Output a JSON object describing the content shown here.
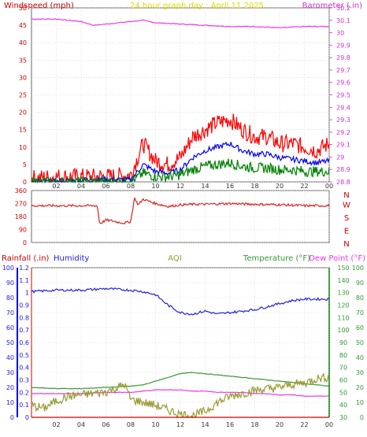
{
  "header": {
    "left_label": "Windspeed (mph)",
    "center_label": "24 hour graph day : April 11 2025",
    "right_label": "Barometer (.in)"
  },
  "bottom_header": {
    "rainfall_label": "Rainfall (.in)",
    "humidity_label": "Humidity",
    "aqi_label": "AQI",
    "temperature_label": "Temperature (°F)",
    "dewpoint_label": "Dew Point (°F)"
  },
  "colors": {
    "windspeed": "#cc0000",
    "gust": "#ff0000",
    "wind_avg": "#0000ee",
    "wind_low": "#008000",
    "barometer": "#ee33ee",
    "direction": "#dd2222",
    "humidity": "#2020dd",
    "temperature": "#339933",
    "dewpoint": "#ee33ee",
    "aqi": "#999933",
    "rain": "#cc0000",
    "title": "#dddd00",
    "grid": "#cfcfcf"
  },
  "chart_data": [
    {
      "type": "line",
      "name": "wind-baro",
      "x_ticks": [
        "02",
        "04",
        "06",
        "08",
        "10",
        "12",
        "14",
        "16",
        "18",
        "20",
        "22",
        "00"
      ],
      "left_axis": {
        "ylim": [
          0,
          50
        ],
        "ticks": [
          0,
          5,
          10,
          15,
          20,
          25,
          30,
          35,
          40,
          45,
          50
        ]
      },
      "right_axis": {
        "ylim": [
          28.8,
          30.2
        ],
        "ticks": [
          "28.8",
          "28.9",
          "29",
          "29.1",
          "29.2",
          "29.3",
          "29.4",
          "29.5",
          "29.6",
          "29.7",
          "29.8",
          "29.9",
          "30",
          "30.1",
          "30.2"
        ]
      },
      "series": [
        {
          "key": "barometer",
          "x": [
            0,
            2,
            4,
            5,
            6,
            7,
            8,
            9,
            10,
            12,
            14,
            16,
            18,
            20,
            22,
            24
          ],
          "values": [
            30.11,
            30.11,
            30.09,
            30.06,
            30.07,
            30.08,
            30.09,
            30.1,
            30.08,
            30.07,
            30.06,
            30.05,
            30.05,
            30.04,
            30.05,
            30.05
          ]
        },
        {
          "key": "gust",
          "x": [
            0,
            2,
            4,
            6,
            8,
            9,
            10,
            11,
            12,
            13,
            14,
            15,
            16,
            17,
            18,
            19,
            20,
            21,
            22,
            23,
            24
          ],
          "values": [
            1,
            1.5,
            1.5,
            1.5,
            2,
            11,
            6,
            5,
            7,
            13,
            15,
            17,
            18,
            15,
            13,
            13,
            11,
            11,
            10,
            9,
            11
          ]
        },
        {
          "key": "wind_avg",
          "x": [
            0,
            2,
            4,
            6,
            8,
            9,
            10,
            11,
            12,
            13,
            14,
            15,
            16,
            17,
            18,
            19,
            20,
            21,
            22,
            23,
            24
          ],
          "values": [
            0,
            0,
            0.5,
            0.8,
            0.5,
            5,
            3,
            2.5,
            3.5,
            7,
            9,
            10,
            11,
            9,
            8,
            8,
            7,
            6.5,
            6,
            5.5,
            6
          ]
        },
        {
          "key": "wind_low",
          "x": [
            0,
            2,
            4,
            6,
            8,
            9,
            10,
            11,
            12,
            13,
            14,
            15,
            16,
            17,
            18,
            19,
            20,
            21,
            22,
            23,
            24
          ],
          "values": [
            0,
            0,
            0,
            0,
            0,
            2.5,
            1.5,
            1.5,
            2,
            3.5,
            4.5,
            5,
            5.5,
            4.5,
            4,
            4,
            3.5,
            3.5,
            3,
            3,
            3
          ]
        }
      ]
    },
    {
      "type": "line",
      "name": "wind-direction",
      "left_axis": {
        "ylim": [
          0,
          360
        ],
        "ticks": [
          0,
          90,
          180,
          270,
          360
        ]
      },
      "right_letters": [
        "N",
        "W",
        "S",
        "E",
        "N"
      ],
      "series": [
        {
          "key": "direction",
          "x": [
            0,
            2,
            4,
            5.3,
            5.5,
            6,
            6.5,
            7,
            7.5,
            8,
            8.3,
            8.6,
            9,
            10,
            11,
            12,
            13,
            14,
            16,
            18,
            20,
            22,
            24
          ],
          "values": [
            255,
            255,
            255,
            255,
            130,
            155,
            150,
            140,
            135,
            145,
            310,
            260,
            300,
            270,
            250,
            260,
            265,
            265,
            270,
            265,
            262,
            255,
            255
          ]
        }
      ]
    },
    {
      "type": "line",
      "name": "humidity-temperature",
      "x_ticks": [
        "02",
        "04",
        "06",
        "08",
        "10",
        "12",
        "14",
        "16",
        "18",
        "20",
        "22",
        "00"
      ],
      "humidity_axis": {
        "ylim": [
          0,
          100
        ],
        "ticks": [
          0,
          10,
          20,
          30,
          40,
          50,
          60,
          70,
          80,
          90,
          100
        ]
      },
      "rain_axis": {
        "ylim": [
          0,
          1.2
        ],
        "ticks": [
          "0",
          "0.1",
          "0.2",
          "0.3",
          "0.4",
          "0.5",
          "0.6",
          "0.7",
          "0.8",
          "0.9",
          "1",
          "1.1",
          "1.2"
        ]
      },
      "temp_axis": {
        "ylim": [
          30,
          150
        ],
        "ticks": [
          30,
          40,
          50,
          60,
          70,
          80,
          90,
          100,
          110,
          120,
          130,
          140,
          150
        ]
      },
      "far_axis": {
        "ylim": [
          0,
          100
        ],
        "ticks": [
          0,
          10,
          20,
          30,
          40,
          50,
          60,
          70,
          80,
          90,
          100
        ]
      },
      "series": [
        {
          "key": "humidity",
          "x": [
            0,
            2,
            4,
            6,
            8,
            9,
            10,
            11,
            12,
            13,
            14,
            15,
            16,
            17,
            18,
            19,
            20,
            21,
            22,
            23,
            24
          ],
          "values": [
            84,
            85,
            85,
            86,
            85,
            84,
            82,
            75,
            70,
            69,
            71,
            69,
            70,
            71,
            72,
            74,
            76,
            78,
            79,
            79,
            79
          ]
        },
        {
          "key": "temperature",
          "x": [
            0,
            2,
            4,
            6,
            8,
            9,
            10,
            11,
            12,
            13,
            14,
            15,
            16,
            17,
            18,
            19,
            20,
            21,
            22,
            23,
            24
          ],
          "values": [
            54,
            53,
            53,
            54,
            55,
            56,
            59,
            62,
            65,
            66,
            65,
            64,
            63,
            62,
            61,
            60,
            59,
            58,
            57,
            56,
            55
          ]
        },
        {
          "key": "dewpoint",
          "x": [
            0,
            2,
            4,
            6,
            8,
            9,
            10,
            11,
            12,
            13,
            14,
            15,
            16,
            17,
            18,
            19,
            20,
            21,
            22,
            23,
            24
          ],
          "values": [
            49,
            49,
            49,
            50,
            50,
            51,
            52,
            52,
            52,
            51,
            51,
            50,
            50,
            50,
            49,
            49,
            48,
            48,
            47,
            47,
            47
          ]
        },
        {
          "key": "aqi",
          "x": [
            0,
            1,
            2,
            3,
            4,
            5,
            6,
            7,
            7.5,
            8,
            9,
            10,
            11,
            12,
            13,
            14,
            15,
            16,
            17,
            18,
            19,
            20,
            21,
            22,
            23,
            24
          ],
          "values": [
            8,
            6,
            11,
            14,
            15,
            16,
            17,
            20,
            22,
            12,
            10,
            8,
            5,
            2,
            1,
            4,
            10,
            14,
            16,
            18,
            19,
            20,
            22,
            23,
            26,
            27
          ]
        },
        {
          "key": "rain",
          "x": [
            0,
            24
          ],
          "values": [
            0,
            0
          ]
        }
      ]
    }
  ]
}
